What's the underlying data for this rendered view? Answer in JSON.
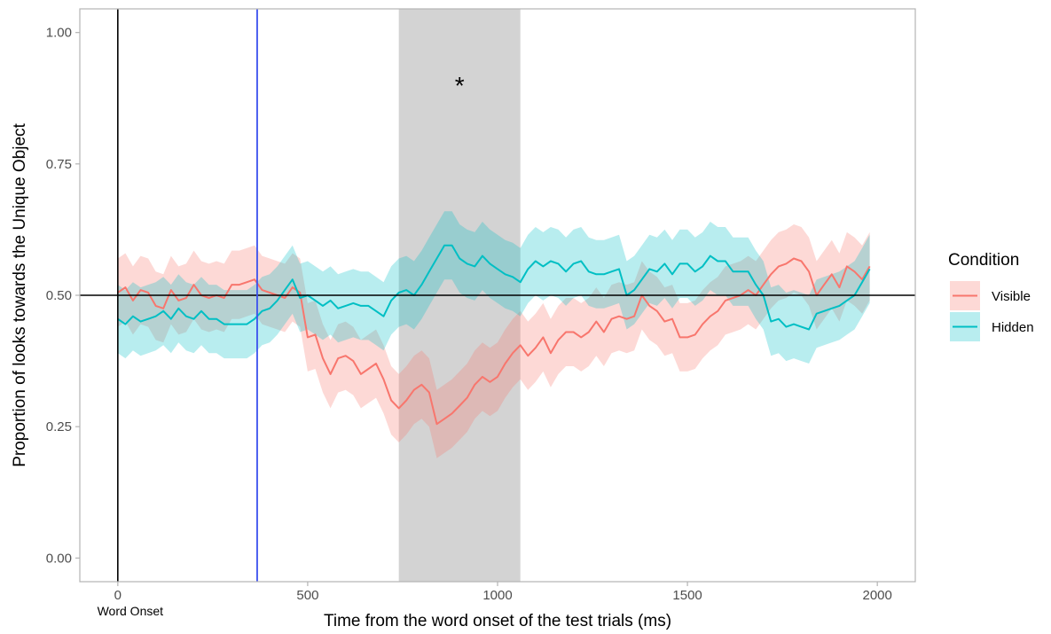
{
  "chart_data": {
    "type": "line",
    "xlabel": "Time from the word onset of the test trials (ms)",
    "ylabel": "Proportion of looks towards the Unique Object",
    "xlim": [
      -100,
      2100
    ],
    "ylim": [
      -0.045,
      1.045
    ],
    "x_ticks": [
      0,
      500,
      1000,
      1500,
      2000
    ],
    "x_tick_labels": [
      "0",
      "500",
      "1000",
      "1500",
      "2000"
    ],
    "y_ticks": [
      0,
      0.25,
      0.5,
      0.75,
      1.0
    ],
    "y_tick_labels": [
      "0.00",
      "0.25",
      "0.50",
      "0.75",
      "1.00"
    ],
    "grid": false,
    "legend": {
      "title": "Condition",
      "position": "right",
      "items": [
        "Visible",
        "Hidden"
      ]
    },
    "reference_lines": {
      "horizontal_y": 0.5,
      "vertical_black_x": 0,
      "vertical_blue_x": 367,
      "colors": {
        "black": "#000000",
        "blue": "#3b50ee"
      }
    },
    "shaded_region": {
      "x_start": 740,
      "x_end": 1060,
      "color": "#d3d3d3"
    },
    "annotations": {
      "word_onset": {
        "text": "Word Onset",
        "x": 0
      },
      "significance": {
        "text": "*",
        "x": 900,
        "y": 0.91
      }
    },
    "x": [
      0,
      20,
      40,
      60,
      80,
      100,
      120,
      140,
      160,
      180,
      200,
      220,
      240,
      260,
      280,
      300,
      320,
      340,
      360,
      380,
      400,
      420,
      440,
      460,
      480,
      500,
      520,
      540,
      560,
      580,
      600,
      620,
      640,
      660,
      680,
      700,
      720,
      740,
      760,
      780,
      800,
      820,
      840,
      860,
      880,
      900,
      920,
      940,
      960,
      980,
      1000,
      1020,
      1040,
      1060,
      1080,
      1100,
      1120,
      1140,
      1160,
      1180,
      1200,
      1220,
      1240,
      1260,
      1280,
      1300,
      1320,
      1340,
      1360,
      1380,
      1400,
      1420,
      1440,
      1460,
      1480,
      1500,
      1520,
      1540,
      1560,
      1580,
      1600,
      1620,
      1640,
      1660,
      1680,
      1700,
      1720,
      1740,
      1760,
      1780,
      1800,
      1820,
      1840,
      1860,
      1880,
      1900,
      1920,
      1940,
      1960,
      1980
    ],
    "series": [
      {
        "name": "Visible",
        "color": "#f8766d",
        "values": [
          0.505,
          0.515,
          0.49,
          0.51,
          0.505,
          0.48,
          0.475,
          0.51,
          0.49,
          0.495,
          0.52,
          0.5,
          0.495,
          0.5,
          0.495,
          0.52,
          0.52,
          0.525,
          0.53,
          0.51,
          0.505,
          0.5,
          0.495,
          0.515,
          0.505,
          0.42,
          0.425,
          0.38,
          0.35,
          0.38,
          0.385,
          0.375,
          0.35,
          0.36,
          0.37,
          0.34,
          0.3,
          0.285,
          0.3,
          0.32,
          0.33,
          0.315,
          0.255,
          0.265,
          0.275,
          0.29,
          0.305,
          0.33,
          0.345,
          0.335,
          0.345,
          0.37,
          0.39,
          0.405,
          0.385,
          0.4,
          0.42,
          0.39,
          0.415,
          0.43,
          0.43,
          0.42,
          0.43,
          0.45,
          0.43,
          0.455,
          0.46,
          0.455,
          0.46,
          0.5,
          0.48,
          0.47,
          0.45,
          0.455,
          0.42,
          0.42,
          0.425,
          0.445,
          0.46,
          0.47,
          0.49,
          0.495,
          0.5,
          0.51,
          0.5,
          0.52,
          0.54,
          0.555,
          0.56,
          0.57,
          0.565,
          0.545,
          0.5,
          0.52,
          0.54,
          0.515,
          0.555,
          0.545,
          0.53,
          0.555
        ],
        "lower": [
          0.44,
          0.45,
          0.425,
          0.445,
          0.44,
          0.415,
          0.41,
          0.445,
          0.425,
          0.43,
          0.455,
          0.435,
          0.43,
          0.435,
          0.43,
          0.455,
          0.455,
          0.46,
          0.465,
          0.445,
          0.44,
          0.435,
          0.43,
          0.45,
          0.44,
          0.355,
          0.36,
          0.315,
          0.285,
          0.315,
          0.32,
          0.31,
          0.285,
          0.295,
          0.305,
          0.275,
          0.235,
          0.22,
          0.235,
          0.255,
          0.265,
          0.25,
          0.19,
          0.2,
          0.21,
          0.225,
          0.24,
          0.265,
          0.28,
          0.27,
          0.28,
          0.305,
          0.325,
          0.34,
          0.32,
          0.335,
          0.355,
          0.325,
          0.35,
          0.365,
          0.365,
          0.355,
          0.365,
          0.385,
          0.365,
          0.39,
          0.395,
          0.39,
          0.395,
          0.435,
          0.415,
          0.405,
          0.385,
          0.39,
          0.355,
          0.355,
          0.36,
          0.38,
          0.395,
          0.405,
          0.425,
          0.43,
          0.435,
          0.445,
          0.435,
          0.455,
          0.475,
          0.49,
          0.495,
          0.505,
          0.5,
          0.48,
          0.435,
          0.455,
          0.475,
          0.45,
          0.49,
          0.48,
          0.465,
          0.49
        ],
        "upper": [
          0.57,
          0.58,
          0.555,
          0.575,
          0.57,
          0.545,
          0.54,
          0.575,
          0.555,
          0.56,
          0.585,
          0.565,
          0.56,
          0.565,
          0.56,
          0.585,
          0.585,
          0.59,
          0.595,
          0.575,
          0.57,
          0.565,
          0.56,
          0.58,
          0.57,
          0.485,
          0.49,
          0.445,
          0.415,
          0.445,
          0.45,
          0.44,
          0.415,
          0.425,
          0.435,
          0.405,
          0.365,
          0.35,
          0.365,
          0.385,
          0.395,
          0.38,
          0.32,
          0.33,
          0.34,
          0.355,
          0.37,
          0.395,
          0.41,
          0.4,
          0.41,
          0.435,
          0.455,
          0.47,
          0.45,
          0.465,
          0.485,
          0.455,
          0.48,
          0.495,
          0.495,
          0.485,
          0.495,
          0.515,
          0.495,
          0.52,
          0.525,
          0.52,
          0.525,
          0.565,
          0.545,
          0.535,
          0.515,
          0.52,
          0.485,
          0.485,
          0.49,
          0.51,
          0.525,
          0.535,
          0.555,
          0.56,
          0.565,
          0.575,
          0.565,
          0.585,
          0.605,
          0.62,
          0.625,
          0.635,
          0.63,
          0.61,
          0.565,
          0.585,
          0.605,
          0.58,
          0.62,
          0.61,
          0.595,
          0.62
        ]
      },
      {
        "name": "Hidden",
        "color": "#00bfc4",
        "values": [
          0.455,
          0.445,
          0.46,
          0.45,
          0.455,
          0.46,
          0.47,
          0.455,
          0.475,
          0.46,
          0.455,
          0.47,
          0.455,
          0.455,
          0.445,
          0.445,
          0.445,
          0.445,
          0.455,
          0.47,
          0.475,
          0.49,
          0.51,
          0.53,
          0.495,
          0.5,
          0.49,
          0.48,
          0.49,
          0.475,
          0.48,
          0.485,
          0.48,
          0.48,
          0.47,
          0.46,
          0.49,
          0.505,
          0.51,
          0.5,
          0.52,
          0.545,
          0.57,
          0.595,
          0.595,
          0.57,
          0.56,
          0.555,
          0.575,
          0.56,
          0.55,
          0.54,
          0.535,
          0.525,
          0.55,
          0.565,
          0.555,
          0.565,
          0.56,
          0.545,
          0.56,
          0.565,
          0.545,
          0.54,
          0.54,
          0.545,
          0.55,
          0.5,
          0.51,
          0.53,
          0.55,
          0.545,
          0.56,
          0.54,
          0.56,
          0.56,
          0.545,
          0.555,
          0.575,
          0.565,
          0.565,
          0.545,
          0.545,
          0.545,
          0.52,
          0.5,
          0.45,
          0.455,
          0.44,
          0.445,
          0.44,
          0.435,
          0.465,
          0.47,
          0.475,
          0.48,
          0.49,
          0.5,
          0.525,
          0.55
        ],
        "lower": [
          0.39,
          0.38,
          0.395,
          0.385,
          0.39,
          0.395,
          0.405,
          0.39,
          0.41,
          0.395,
          0.39,
          0.405,
          0.39,
          0.39,
          0.38,
          0.38,
          0.38,
          0.38,
          0.39,
          0.405,
          0.41,
          0.425,
          0.445,
          0.465,
          0.43,
          0.435,
          0.425,
          0.415,
          0.425,
          0.41,
          0.415,
          0.42,
          0.415,
          0.415,
          0.405,
          0.395,
          0.425,
          0.44,
          0.445,
          0.435,
          0.455,
          0.48,
          0.505,
          0.53,
          0.53,
          0.505,
          0.495,
          0.49,
          0.51,
          0.495,
          0.485,
          0.475,
          0.47,
          0.46,
          0.485,
          0.5,
          0.49,
          0.5,
          0.495,
          0.48,
          0.495,
          0.5,
          0.48,
          0.475,
          0.475,
          0.48,
          0.485,
          0.435,
          0.445,
          0.465,
          0.485,
          0.48,
          0.495,
          0.475,
          0.495,
          0.495,
          0.48,
          0.49,
          0.51,
          0.5,
          0.5,
          0.48,
          0.48,
          0.48,
          0.455,
          0.435,
          0.385,
          0.39,
          0.375,
          0.38,
          0.375,
          0.37,
          0.4,
          0.405,
          0.41,
          0.415,
          0.425,
          0.435,
          0.46,
          0.485
        ],
        "upper": [
          0.52,
          0.51,
          0.525,
          0.515,
          0.52,
          0.525,
          0.535,
          0.52,
          0.54,
          0.525,
          0.52,
          0.535,
          0.52,
          0.52,
          0.51,
          0.51,
          0.51,
          0.51,
          0.52,
          0.535,
          0.54,
          0.555,
          0.575,
          0.595,
          0.56,
          0.565,
          0.555,
          0.545,
          0.555,
          0.54,
          0.545,
          0.55,
          0.545,
          0.545,
          0.535,
          0.525,
          0.555,
          0.57,
          0.575,
          0.565,
          0.585,
          0.61,
          0.635,
          0.66,
          0.66,
          0.635,
          0.625,
          0.62,
          0.64,
          0.625,
          0.615,
          0.605,
          0.6,
          0.59,
          0.615,
          0.63,
          0.62,
          0.63,
          0.625,
          0.61,
          0.625,
          0.63,
          0.61,
          0.605,
          0.605,
          0.61,
          0.615,
          0.565,
          0.575,
          0.595,
          0.615,
          0.61,
          0.625,
          0.605,
          0.625,
          0.625,
          0.61,
          0.62,
          0.64,
          0.63,
          0.63,
          0.61,
          0.61,
          0.61,
          0.585,
          0.565,
          0.515,
          0.52,
          0.505,
          0.51,
          0.505,
          0.5,
          0.53,
          0.535,
          0.54,
          0.545,
          0.555,
          0.565,
          0.59,
          0.615
        ]
      }
    ]
  }
}
